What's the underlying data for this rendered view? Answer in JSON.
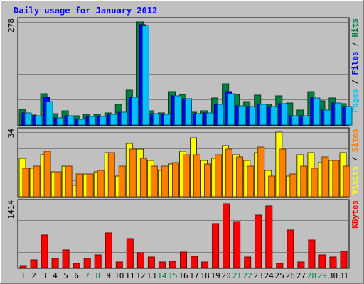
{
  "chart_data": {
    "type": "bar",
    "title": "Daily usage for January 2012",
    "categories": [
      "1",
      "2",
      "3",
      "4",
      "5",
      "6",
      "7",
      "8",
      "9",
      "10",
      "11",
      "12",
      "13",
      "14",
      "15",
      "16",
      "17",
      "18",
      "19",
      "20",
      "21",
      "22",
      "23",
      "24",
      "25",
      "26",
      "27",
      "28",
      "29",
      "30",
      "31"
    ],
    "weekend_color": "#008040",
    "weekday_color": "#00805c",
    "weekend_days": [
      "1",
      "7",
      "8",
      "14",
      "15",
      "21",
      "22",
      "28",
      "29"
    ],
    "panels": [
      {
        "name": "pages-files-hits",
        "ymax_label": "278",
        "ymax": 278,
        "legend": [
          {
            "text": "Pages",
            "color": "#00c0ff"
          },
          {
            "text": " / ",
            "color": "#000000"
          },
          {
            "text": "Files",
            "color": "#0000ff"
          },
          {
            "text": " / ",
            "color": "#000000"
          },
          {
            "text": "Hits",
            "color": "#008040"
          }
        ],
        "series": [
          {
            "name": "Hits",
            "color": "#008040",
            "values": [
              42,
              27,
              85,
              30,
              38,
              25,
              28,
              28,
              33,
              56,
              94,
              278,
              39,
              33,
              90,
              83,
              35,
              38,
              73,
              112,
              82,
              64,
              80,
              56,
              78,
              60,
              40,
              90,
              65,
              73,
              58
            ]
          },
          {
            "name": "Files",
            "color": "#0000ff",
            "values": [
              33,
              25,
              74,
              20,
              25,
              15,
              23,
              23,
              28,
              35,
              75,
              270,
              30,
              28,
              78,
              70,
              30,
              33,
              55,
              90,
              52,
              50,
              55,
              50,
              58,
              25,
              25,
              73,
              40,
              60,
              50
            ]
          },
          {
            "name": "Pages",
            "color": "#00c0ff",
            "values": [
              33,
              25,
              63,
              20,
              25,
              15,
              23,
              23,
              28,
              35,
              75,
              268,
              30,
              28,
              78,
              70,
              30,
              33,
              55,
              85,
              52,
              50,
              55,
              50,
              58,
              25,
              25,
              73,
              40,
              60,
              50
            ]
          }
        ]
      },
      {
        "name": "visits-sites",
        "ymax_label": "34",
        "ymax": 34,
        "legend": [
          {
            "text": "Visits",
            "color": "#ffff00"
          },
          {
            "text": " / ",
            "color": "#000000"
          },
          {
            "text": "Sites",
            "color": "#ff8000"
          }
        ],
        "series": [
          {
            "name": "Visits",
            "color": "#ffff00",
            "values": [
              20,
              15,
              22,
              13,
              16,
              6,
              12,
              13,
              23,
              11,
              28,
              25,
              19,
              14,
              17,
              24,
              31,
              19,
              20,
              27,
              22,
              19,
              23,
              14,
              34,
              11,
              22,
              23,
              18,
              19,
              23
            ]
          },
          {
            "name": "Sites",
            "color": "#ff8000",
            "values": [
              15,
              16,
              24,
              13,
              16,
              12,
              12,
              14,
              23,
              16,
              25,
              20,
              16,
              16,
              18,
              22,
              22,
              17,
              22,
              25,
              21,
              16,
              26,
              11,
              25,
              12,
              16,
              15,
              21,
              19,
              16
            ]
          }
        ]
      },
      {
        "name": "kbytes",
        "ymax_label": "1414",
        "ymax": 1414,
        "legend": [
          {
            "text": "KBytes",
            "color": "#ff0000"
          }
        ],
        "series": [
          {
            "name": "KBytes",
            "color": "#ff0000",
            "values": [
              40,
              170,
              730,
              200,
              390,
              100,
              200,
              290,
              770,
              120,
              640,
              330,
              240,
              120,
              140,
              340,
              250,
              120,
              975,
              1414,
              1020,
              230,
              1160,
              1360,
              100,
              830,
              130,
              620,
              290,
              230,
              360
            ]
          }
        ]
      }
    ]
  }
}
